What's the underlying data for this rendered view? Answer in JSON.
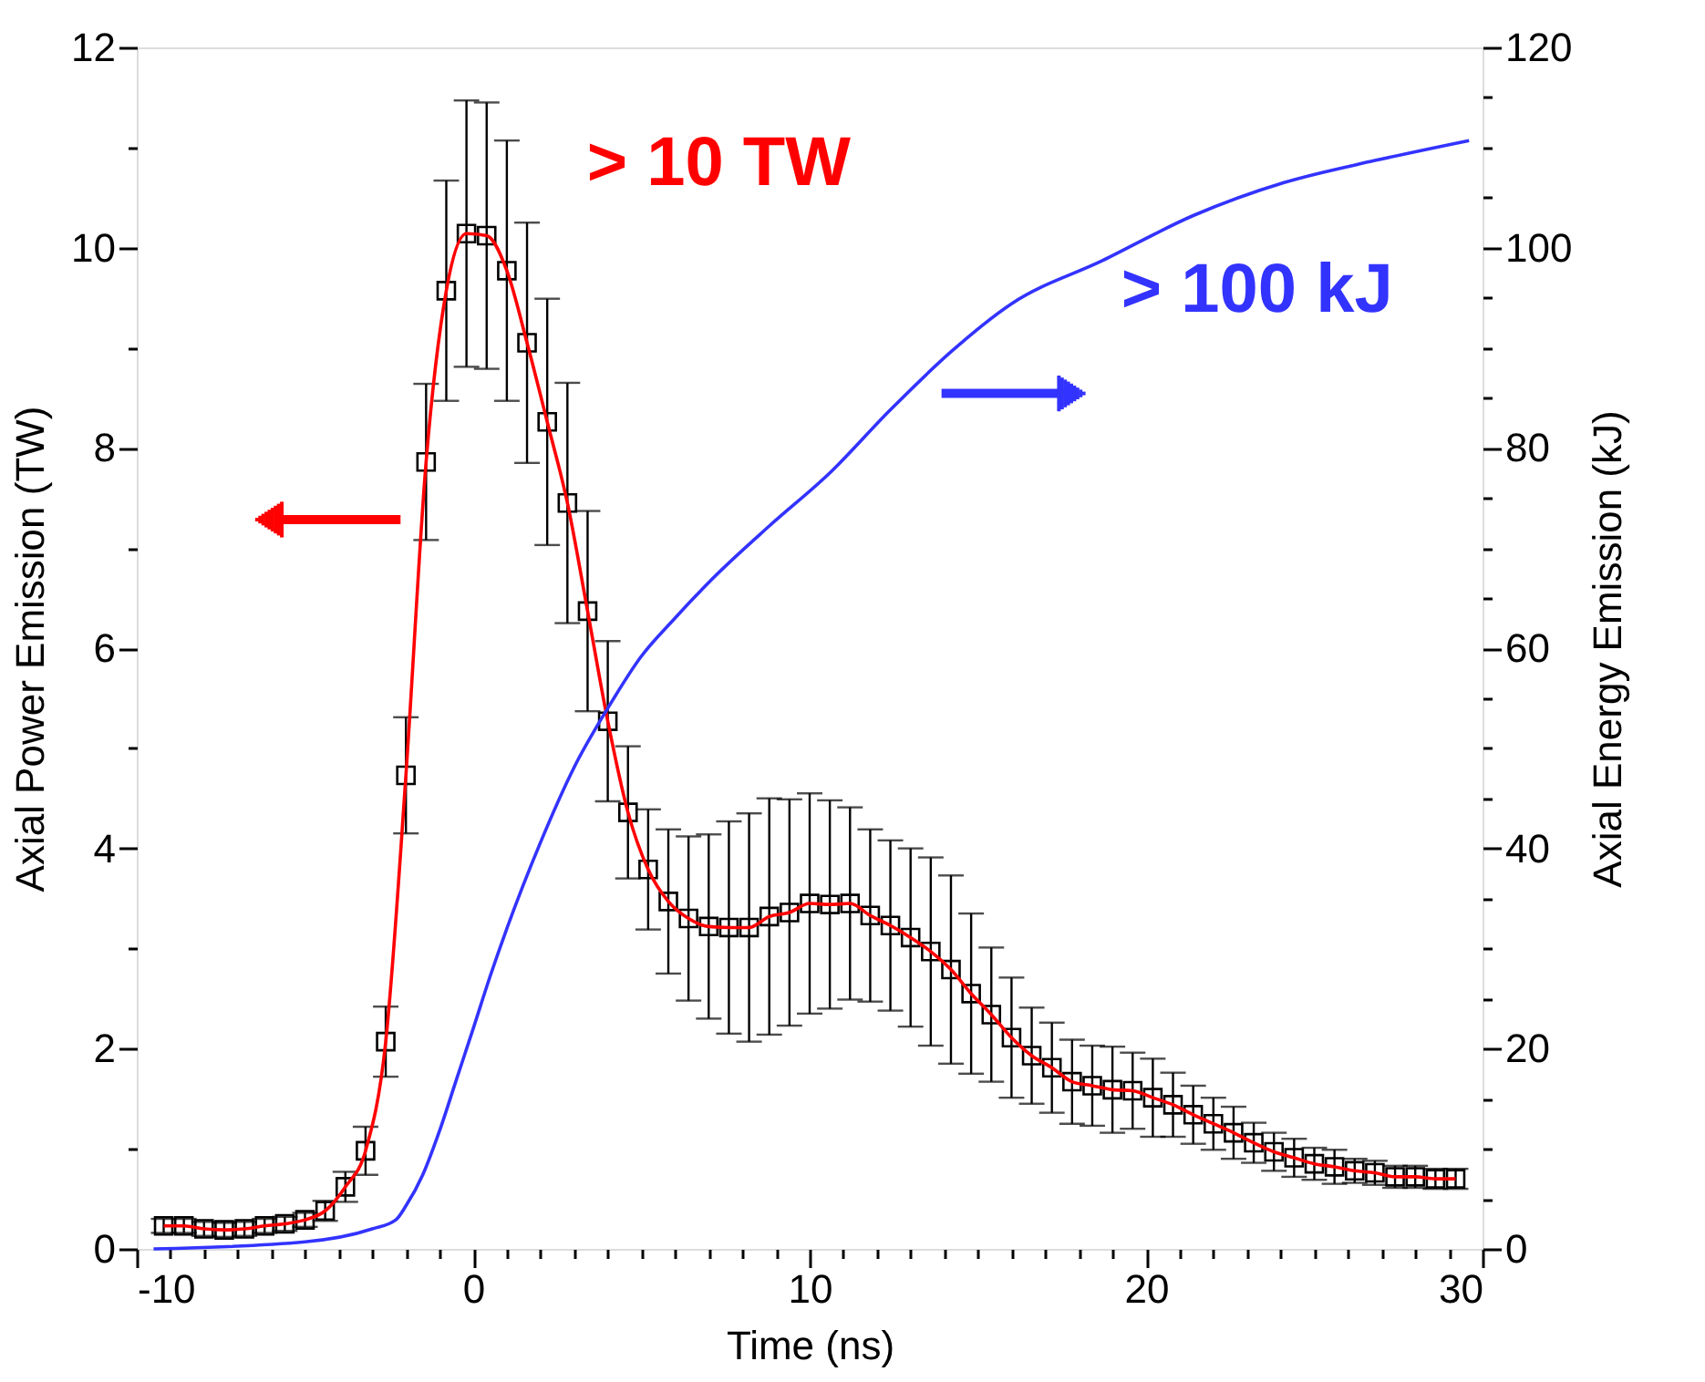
{
  "chart_data": {
    "type": "scatter",
    "xlabel": "Time (ns)",
    "ylabel": "Axial Power Emission (TW)",
    "y2label": "Axial Energy Emission (kJ)",
    "xlim": [
      -10,
      30
    ],
    "ylim": [
      0,
      12
    ],
    "y2lim": [
      0,
      120
    ],
    "xticks": [
      -10,
      {
        "value": -9,
        "label": null
      },
      {
        "value": -8,
        "label": null
      },
      {
        "value": -7,
        "label": null
      },
      {
        "value": -6,
        "label": null
      },
      {
        "value": -5,
        "label": null
      },
      {
        "value": -4,
        "label": null
      },
      {
        "value": -3,
        "label": null
      },
      {
        "value": -2,
        "label": null
      },
      {
        "value": -1,
        "label": null
      },
      0,
      {
        "value": 1,
        "label": null
      },
      {
        "value": 2,
        "label": null
      },
      {
        "value": 3,
        "label": null
      },
      {
        "value": 4,
        "label": null
      },
      {
        "value": 5,
        "label": null
      },
      {
        "value": 6,
        "label": null
      },
      {
        "value": 7,
        "label": null
      },
      {
        "value": 8,
        "label": null
      },
      {
        "value": 9,
        "label": null
      },
      10,
      {
        "value": 11,
        "label": null
      },
      {
        "value": 12,
        "label": null
      },
      {
        "value": 13,
        "label": null
      },
      {
        "value": 14,
        "label": null
      },
      {
        "value": 15,
        "label": null
      },
      {
        "value": 16,
        "label": null
      },
      {
        "value": 17,
        "label": null
      },
      {
        "value": 18,
        "label": null
      },
      {
        "value": 19,
        "label": null
      },
      20,
      {
        "value": 21,
        "label": null
      },
      {
        "value": 22,
        "label": null
      },
      {
        "value": 23,
        "label": null
      },
      {
        "value": 24,
        "label": null
      },
      {
        "value": 25,
        "label": null
      },
      {
        "value": 26,
        "label": null
      },
      {
        "value": 27,
        "label": null
      },
      {
        "value": 28,
        "label": null
      },
      {
        "value": 29,
        "label": null
      },
      30
    ],
    "yticks": [
      0,
      {
        "value": 0.5,
        "label": null
      },
      {
        "value": 1,
        "label": null
      },
      {
        "value": 1.5,
        "label": null
      },
      2,
      {
        "value": 2.5,
        "label": null
      },
      {
        "value": 3,
        "label": null
      },
      {
        "value": 3.5,
        "label": null
      },
      4,
      {
        "value": 4.5,
        "label": null
      },
      {
        "value": 5,
        "label": null
      },
      {
        "value": 5.5,
        "label": null
      },
      6,
      {
        "value": 6.5,
        "label": null
      },
      {
        "value": 7,
        "label": null
      },
      {
        "value": 7.5,
        "label": null
      },
      8,
      {
        "value": 8.5,
        "label": null
      },
      {
        "value": 9,
        "label": null
      },
      {
        "value": 9.5,
        "label": null
      },
      10,
      {
        "value": 10.5,
        "label": null
      },
      {
        "value": 11,
        "label": null
      },
      {
        "value": 11.5,
        "label": null
      },
      12
    ],
    "y2ticks": [
      0,
      {
        "value": 5,
        "label": null
      },
      {
        "value": 10,
        "label": null
      },
      {
        "value": 15,
        "label": null
      },
      20,
      {
        "value": 25,
        "label": null
      },
      {
        "value": 30,
        "label": null
      },
      {
        "value": 35,
        "label": null
      },
      40,
      {
        "value": 45,
        "label": null
      },
      {
        "value": 50,
        "label": null
      },
      {
        "value": 55,
        "label": null
      },
      60,
      {
        "value": 65,
        "label": null
      },
      {
        "value": 70,
        "label": null
      },
      {
        "value": 75,
        "label": null
      },
      80,
      {
        "value": 85,
        "label": null
      },
      {
        "value": 90,
        "label": null
      },
      {
        "value": 95,
        "label": null
      },
      100,
      {
        "value": 105,
        "label": null
      },
      {
        "value": 110,
        "label": null
      },
      {
        "value": 115,
        "label": null
      },
      120
    ],
    "grid": false,
    "annotations": [
      "> 10 TW",
      "> 100 kJ"
    ],
    "series": [
      {
        "color": "#000000",
        "marker": "square",
        "x": [
          -9.2,
          -8.6,
          -8.0,
          -7.4,
          -6.8,
          -6.2,
          -5.6,
          -5.0,
          -4.4,
          -3.8,
          -3.2,
          -2.6,
          -2.0,
          -1.4,
          -0.8,
          -0.2,
          0.4,
          1.0,
          1.6,
          2.2,
          2.8,
          3.4,
          4.0,
          4.6,
          5.2,
          5.8,
          6.4,
          7.0,
          7.6,
          8.2,
          8.8,
          9.4,
          10.0,
          10.6,
          11.2,
          11.8,
          12.4,
          13.0,
          13.6,
          14.2,
          14.8,
          15.4,
          16.0,
          16.6,
          17.2,
          17.8,
          18.4,
          19.0,
          19.6,
          20.2,
          20.8,
          21.4,
          22.0,
          22.6,
          23.2,
          23.8,
          24.4,
          25.0,
          25.6,
          26.2,
          26.8,
          27.4,
          28.0,
          28.6,
          29.2
        ],
        "values": [
          0.23,
          0.23,
          0.2,
          0.19,
          0.2,
          0.23,
          0.25,
          0.29,
          0.38,
          0.62,
          0.98,
          2.07,
          4.73,
          7.86,
          9.57,
          10.14,
          10.12,
          9.77,
          9.05,
          8.26,
          7.45,
          6.37,
          5.27,
          4.36,
          3.79,
          3.47,
          3.3,
          3.22,
          3.21,
          3.21,
          3.32,
          3.36,
          3.45,
          3.44,
          3.45,
          3.33,
          3.23,
          3.11,
          2.97,
          2.79,
          2.55,
          2.34,
          2.11,
          1.93,
          1.81,
          1.67,
          1.63,
          1.59,
          1.58,
          1.51,
          1.44,
          1.34,
          1.25,
          1.16,
          1.06,
          0.97,
          0.91,
          0.85,
          0.82,
          0.78,
          0.76,
          0.72,
          0.72,
          0.7,
          0.7
        ],
        "errors": [
          0.07,
          0.07,
          0.07,
          0.07,
          0.07,
          0.07,
          0.07,
          0.07,
          0.1,
          0.15,
          0.24,
          0.35,
          0.58,
          0.78,
          1.1,
          1.33,
          1.33,
          1.3,
          1.2,
          1.23,
          1.2,
          1.0,
          0.8,
          0.66,
          0.6,
          0.72,
          0.82,
          0.92,
          1.06,
          1.14,
          1.18,
          1.13,
          1.1,
          1.04,
          0.96,
          0.86,
          0.85,
          0.89,
          0.94,
          0.94,
          0.8,
          0.67,
          0.6,
          0.48,
          0.45,
          0.42,
          0.4,
          0.43,
          0.38,
          0.39,
          0.32,
          0.29,
          0.26,
          0.26,
          0.2,
          0.19,
          0.19,
          0.16,
          0.17,
          0.12,
          0.12,
          0.11,
          0.11,
          0.1,
          0.1
        ]
      },
      {
        "type": "line",
        "color": "#ff0000",
        "x": [
          -9.2,
          -8.6,
          -8.0,
          -7.4,
          -6.8,
          -6.2,
          -5.6,
          -5.0,
          -4.4,
          -3.8,
          -3.2,
          -2.6,
          -2.0,
          -1.4,
          -0.8,
          -0.2,
          0.4,
          1.0,
          1.6,
          2.2,
          2.8,
          3.4,
          4.0,
          4.6,
          5.2,
          5.8,
          6.4,
          7.0,
          7.6,
          8.2,
          8.8,
          9.4,
          10.0,
          10.6,
          11.2,
          11.8,
          12.4,
          13.0,
          13.6,
          14.2,
          14.8,
          15.4,
          16.0,
          16.6,
          17.2,
          17.8,
          18.4,
          19.0,
          19.6,
          20.2,
          20.8,
          21.4,
          22.0,
          22.6,
          23.2,
          23.8,
          24.4,
          25.0,
          25.6,
          26.2,
          26.8,
          27.4,
          28.0,
          28.6,
          29.2
        ],
        "values": [
          0.23,
          0.23,
          0.2,
          0.19,
          0.2,
          0.23,
          0.25,
          0.29,
          0.38,
          0.62,
          0.98,
          2.07,
          4.73,
          7.86,
          9.57,
          10.14,
          10.12,
          9.77,
          9.05,
          8.26,
          7.45,
          6.37,
          5.27,
          4.36,
          3.79,
          3.47,
          3.3,
          3.22,
          3.21,
          3.21,
          3.32,
          3.36,
          3.45,
          3.44,
          3.45,
          3.33,
          3.23,
          3.11,
          2.97,
          2.79,
          2.55,
          2.34,
          2.11,
          1.93,
          1.81,
          1.67,
          1.63,
          1.59,
          1.58,
          1.51,
          1.44,
          1.34,
          1.25,
          1.16,
          1.06,
          0.97,
          0.91,
          0.85,
          0.82,
          0.78,
          0.76,
          0.72,
          0.72,
          0.7,
          0.7
        ]
      },
      {
        "type": "line",
        "axis": "y2",
        "color": "#3333ff",
        "x": [
          -9.5,
          -5,
          -3,
          -2.3,
          -2,
          -1.5,
          -1,
          -0.5,
          0,
          0.5,
          1,
          2,
          3,
          4,
          5,
          6,
          7.1,
          8.8,
          10.6,
          12.4,
          14.2,
          16,
          18.7,
          21.4,
          24.1,
          26.8,
          29.6
        ],
        "values": [
          0,
          0.7,
          2,
          2.9,
          4.3,
          7.4,
          11.8,
          16.9,
          22,
          27.2,
          32,
          40.6,
          48.1,
          54,
          59.2,
          63,
          66.9,
          72.2,
          77.5,
          83.8,
          89.6,
          94.4,
          98.7,
          103.2,
          106.5,
          108.7,
          110.7
        ]
      }
    ]
  }
}
